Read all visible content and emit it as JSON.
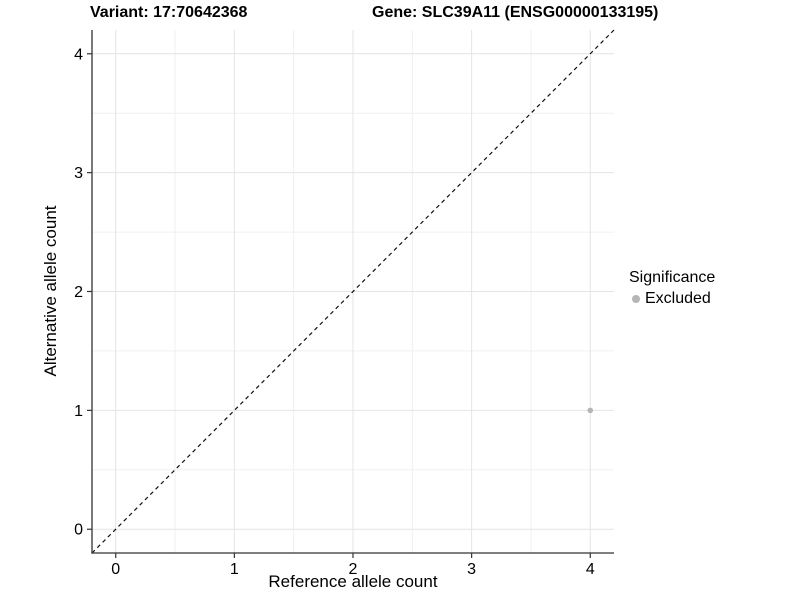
{
  "page": {
    "background": "#ffffff"
  },
  "header": {
    "variant_title": "Variant: 17:70642368",
    "gene_title": "Gene: SLC39A11 (ENSG00000133195)"
  },
  "legend": {
    "title": "Significance",
    "items": [
      {
        "label": "Excluded",
        "color": "#b5b5b5",
        "marker": "circle-icon"
      }
    ]
  },
  "chart_data": {
    "type": "scatter",
    "xlabel": "Reference allele count",
    "ylabel": "Alternative allele count",
    "xlim": [
      -0.2,
      4.2
    ],
    "ylim": [
      -0.2,
      4.2
    ],
    "xticks": [
      0,
      1,
      2,
      3,
      4
    ],
    "yticks": [
      0,
      1,
      2,
      3,
      4
    ],
    "x_minor_ticks": [
      0.5,
      1.5,
      2.5,
      3.5
    ],
    "y_minor_ticks": [
      0.5,
      1.5,
      2.5,
      3.5
    ],
    "grid": "major+minor",
    "legend_position": "right-middle",
    "series": [
      {
        "name": "Excluded",
        "color": "#b5b5b5",
        "points": [
          {
            "x": 4,
            "y": 1
          }
        ]
      }
    ],
    "reference_line": {
      "kind": "y=x",
      "style": "dashed",
      "color": "#111111",
      "from": [
        -0.2,
        -0.2
      ],
      "to": [
        4.2,
        4.2
      ]
    }
  },
  "colors": {
    "grid_major": "#e4e4e4",
    "grid_minor": "#f0f0f0",
    "axis_line": "#333333",
    "tick_mark": "#333333",
    "tick_label": "#000000",
    "point": "#b5b5b5"
  }
}
